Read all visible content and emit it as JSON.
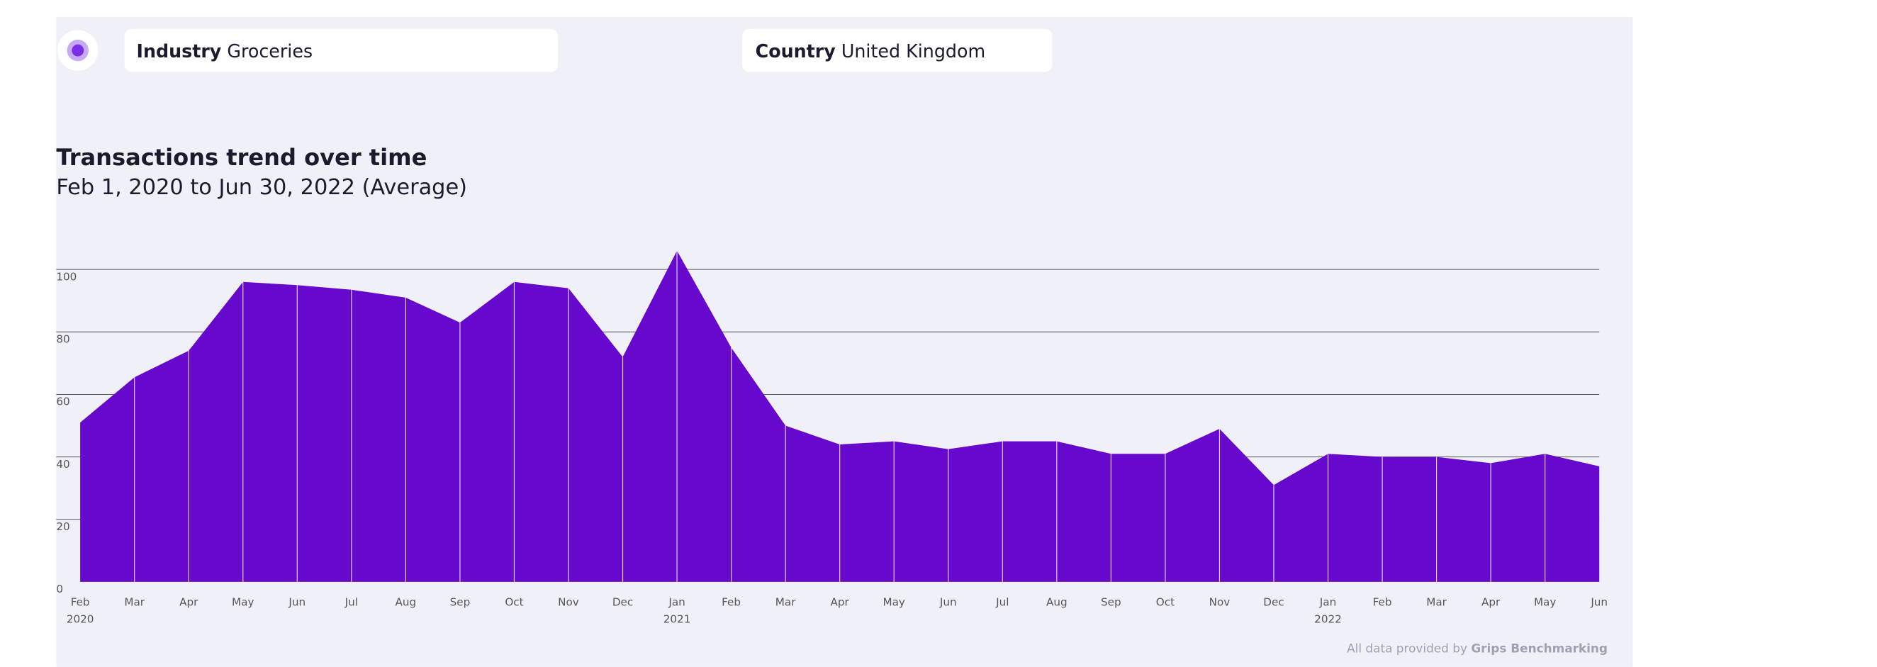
{
  "header": {
    "filters": [
      {
        "label": "Industry",
        "value": "Groceries"
      },
      {
        "label": "Country",
        "value": "United Kingdom"
      }
    ]
  },
  "chart_data": {
    "type": "area",
    "title": "Transactions trend over time",
    "subtitle": "Feb 1, 2020 to Jun 30, 2022 (Average)",
    "categories": [
      "Feb",
      "Mar",
      "Apr",
      "May",
      "Jun",
      "Jul",
      "Aug",
      "Sep",
      "Oct",
      "Nov",
      "Dec",
      "Jan",
      "Feb",
      "Mar",
      "Apr",
      "May",
      "Jun",
      "Jul",
      "Aug",
      "Sep",
      "Oct",
      "Nov",
      "Dec",
      "Jan",
      "Feb",
      "Mar",
      "Apr",
      "May",
      "Jun"
    ],
    "years": [
      "2020",
      null,
      null,
      null,
      null,
      null,
      null,
      null,
      null,
      null,
      null,
      "2021",
      null,
      null,
      null,
      null,
      null,
      null,
      null,
      null,
      null,
      null,
      null,
      "2022",
      null,
      null,
      null,
      null,
      null
    ],
    "values": [
      51,
      65.5,
      74,
      96,
      95,
      93.5,
      91,
      83,
      96,
      94,
      72,
      106,
      75,
      50,
      44,
      45,
      42.5,
      45,
      45,
      41,
      41,
      49,
      31,
      41,
      40,
      40,
      38,
      41,
      37
    ],
    "color": "#6709cc",
    "ylim": [
      0,
      100
    ],
    "yticks": [
      0,
      20,
      40,
      60,
      80,
      100
    ],
    "grid": true,
    "footer": {
      "text": "All data provided by",
      "source": "Grips Benchmarking"
    }
  }
}
